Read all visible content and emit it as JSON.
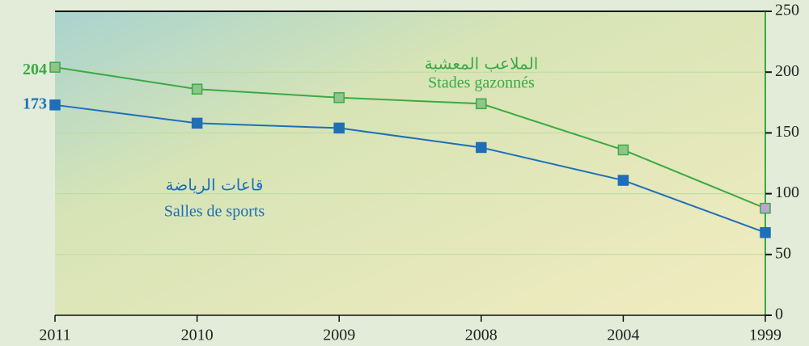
{
  "chart_data": {
    "type": "line",
    "categories": [
      "2011",
      "2010",
      "2009",
      "2008",
      "2004",
      "1999"
    ],
    "series": [
      {
        "name": "Stades gazonnés",
        "name_ar": "الملاعب المعشبة",
        "color": "#3aaa45",
        "marker_color": "#8fc48a",
        "last_marker_color": "#b8a6d6",
        "values": [
          204,
          186,
          179,
          174,
          136,
          88
        ]
      },
      {
        "name": "Salles de sports",
        "name_ar": "قاعات الرياضة",
        "color": "#1e6fb8",
        "marker_color": "#1e6fb8",
        "last_marker_color": "#1e6fb8",
        "values": [
          173,
          158,
          154,
          138,
          111,
          68
        ]
      }
    ],
    "ylim": [
      0,
      250
    ],
    "yticks": [
      0,
      50,
      100,
      150,
      200,
      250
    ],
    "grid": true
  }
}
